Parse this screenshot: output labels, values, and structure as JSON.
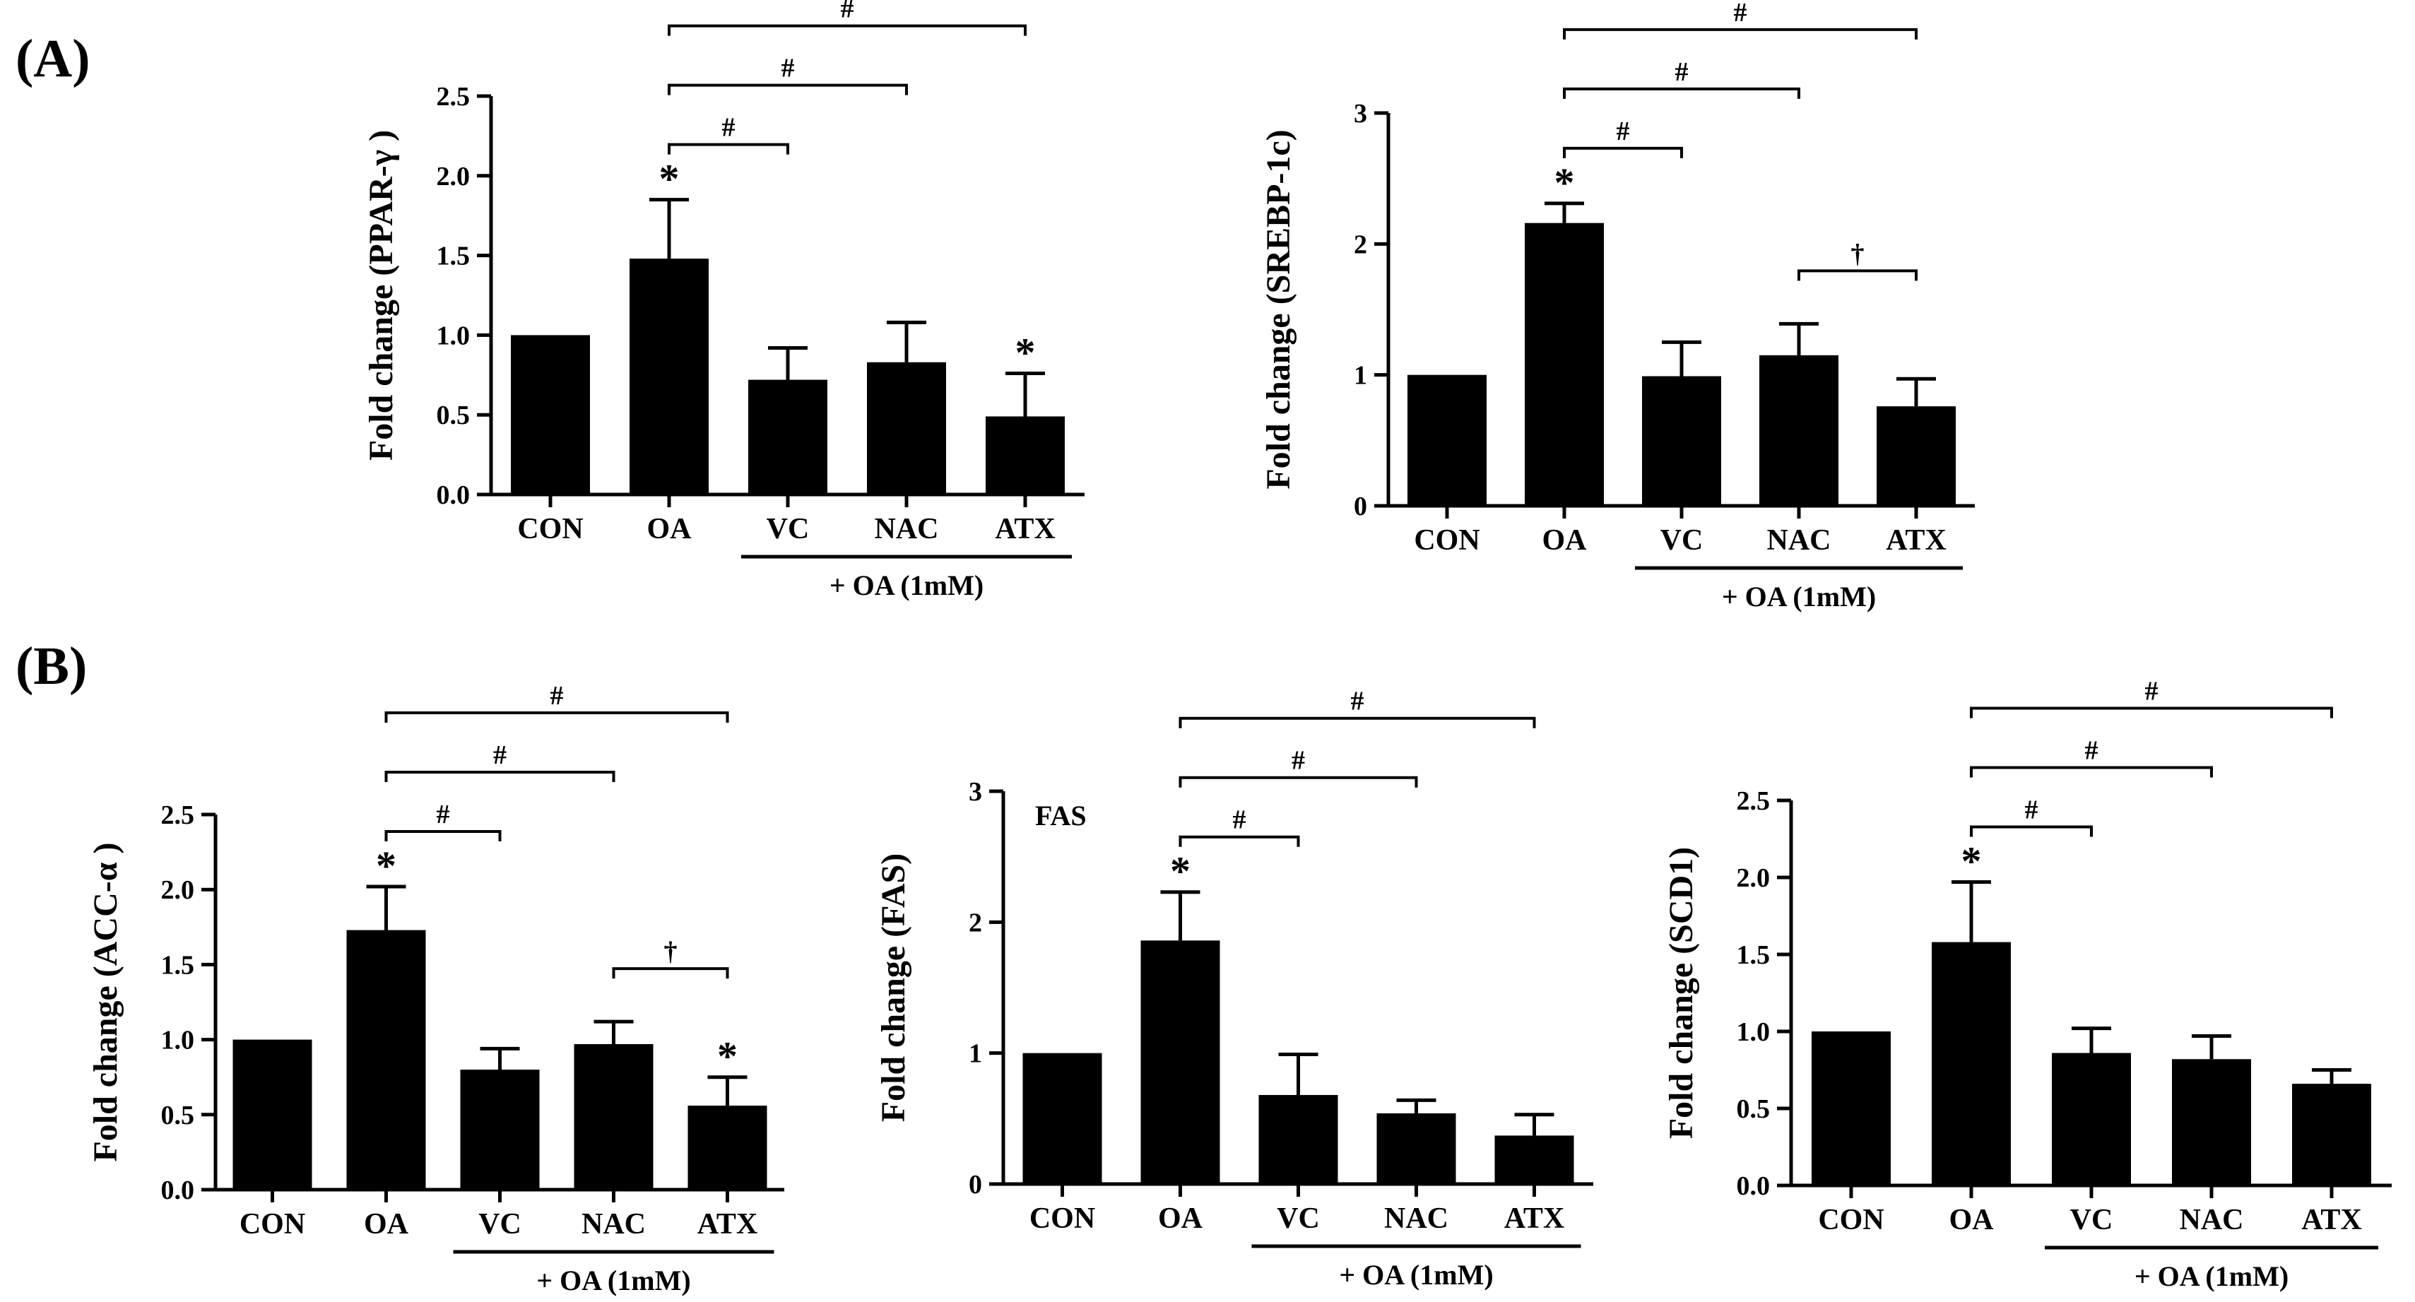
{
  "figure": {
    "panel_labels": [
      "(A)",
      "(B)"
    ]
  },
  "chart_data": [
    {
      "type": "bar",
      "panel": "(A)",
      "title": "",
      "ylabel": "Fold change (PPAR-γ  )",
      "inset_label": "",
      "categories": [
        "CON",
        "OA",
        "VC",
        "NAC",
        "ATX"
      ],
      "values": [
        1.0,
        1.48,
        0.72,
        0.83,
        0.49
      ],
      "errors": [
        0.0,
        0.37,
        0.2,
        0.25,
        0.27
      ],
      "ylim": [
        0,
        2.5
      ],
      "yticks": [
        "0.0",
        "0.5",
        "1.0",
        "1.5",
        "2.0",
        "2.5"
      ],
      "treatment_group_label": "+ OA (1mM)",
      "asterisks": [
        "OA",
        "ATX"
      ],
      "comparisons": [
        {
          "from": "OA",
          "to": "VC",
          "symbol": "#"
        },
        {
          "from": "OA",
          "to": "NAC",
          "symbol": "#"
        },
        {
          "from": "OA",
          "to": "ATX",
          "symbol": "#"
        }
      ]
    },
    {
      "type": "bar",
      "panel": "(A)",
      "title": "",
      "ylabel": "Fold change (SREBP-1c)",
      "inset_label": "",
      "categories": [
        "CON",
        "OA",
        "VC",
        "NAC",
        "ATX"
      ],
      "values": [
        1.0,
        2.16,
        0.99,
        1.15,
        0.76
      ],
      "errors": [
        0.0,
        0.15,
        0.26,
        0.24,
        0.21
      ],
      "ylim": [
        0,
        3
      ],
      "yticks": [
        "0",
        "1",
        "2",
        "3"
      ],
      "treatment_group_label": "+ OA (1mM)",
      "asterisks": [
        "OA"
      ],
      "comparisons": [
        {
          "from": "OA",
          "to": "VC",
          "symbol": "#"
        },
        {
          "from": "OA",
          "to": "NAC",
          "symbol": "#"
        },
        {
          "from": "OA",
          "to": "ATX",
          "symbol": "#"
        },
        {
          "from": "NAC",
          "to": "ATX",
          "symbol": "†"
        }
      ]
    },
    {
      "type": "bar",
      "panel": "(B)",
      "title": "",
      "ylabel": "Fold change (ACC-α  )",
      "inset_label": "",
      "categories": [
        "CON",
        "OA",
        "VC",
        "NAC",
        "ATX"
      ],
      "values": [
        1.0,
        1.73,
        0.8,
        0.97,
        0.56
      ],
      "errors": [
        0.0,
        0.29,
        0.14,
        0.15,
        0.19
      ],
      "ylim": [
        0,
        2.5
      ],
      "yticks": [
        "0.0",
        "0.5",
        "1.0",
        "1.5",
        "2.0",
        "2.5"
      ],
      "treatment_group_label": "+ OA (1mM)",
      "asterisks": [
        "OA",
        "ATX"
      ],
      "comparisons": [
        {
          "from": "OA",
          "to": "VC",
          "symbol": "#"
        },
        {
          "from": "OA",
          "to": "NAC",
          "symbol": "#"
        },
        {
          "from": "OA",
          "to": "ATX",
          "symbol": "#"
        },
        {
          "from": "NAC",
          "to": "ATX",
          "symbol": "†"
        }
      ]
    },
    {
      "type": "bar",
      "panel": "(B)",
      "title": "",
      "ylabel": "Fold change (FAS)",
      "inset_label": "FAS",
      "categories": [
        "CON",
        "OA",
        "VC",
        "NAC",
        "ATX"
      ],
      "values": [
        1.0,
        1.86,
        0.68,
        0.54,
        0.37
      ],
      "errors": [
        0.0,
        0.37,
        0.31,
        0.1,
        0.16
      ],
      "ylim": [
        0,
        3
      ],
      "yticks": [
        "0",
        "1",
        "2",
        "3"
      ],
      "treatment_group_label": "+ OA (1mM)",
      "asterisks": [
        "OA"
      ],
      "comparisons": [
        {
          "from": "OA",
          "to": "VC",
          "symbol": "#"
        },
        {
          "from": "OA",
          "to": "NAC",
          "symbol": "#"
        },
        {
          "from": "OA",
          "to": "ATX",
          "symbol": "#"
        }
      ]
    },
    {
      "type": "bar",
      "panel": "(B)",
      "title": "",
      "ylabel": "Fold change (SCD1)",
      "inset_label": "",
      "categories": [
        "CON",
        "OA",
        "VC",
        "NAC",
        "ATX"
      ],
      "values": [
        1.0,
        1.58,
        0.86,
        0.82,
        0.66
      ],
      "errors": [
        0.0,
        0.39,
        0.16,
        0.15,
        0.09
      ],
      "ylim": [
        0,
        2.5
      ],
      "yticks": [
        "0.0",
        "0.5",
        "1.0",
        "1.5",
        "2.0",
        "2.5"
      ],
      "treatment_group_label": "+ OA (1mM)",
      "asterisks": [
        "OA"
      ],
      "comparisons": [
        {
          "from": "OA",
          "to": "VC",
          "symbol": "#"
        },
        {
          "from": "OA",
          "to": "NAC",
          "symbol": "#"
        },
        {
          "from": "OA",
          "to": "ATX",
          "symbol": "#"
        }
      ]
    }
  ]
}
